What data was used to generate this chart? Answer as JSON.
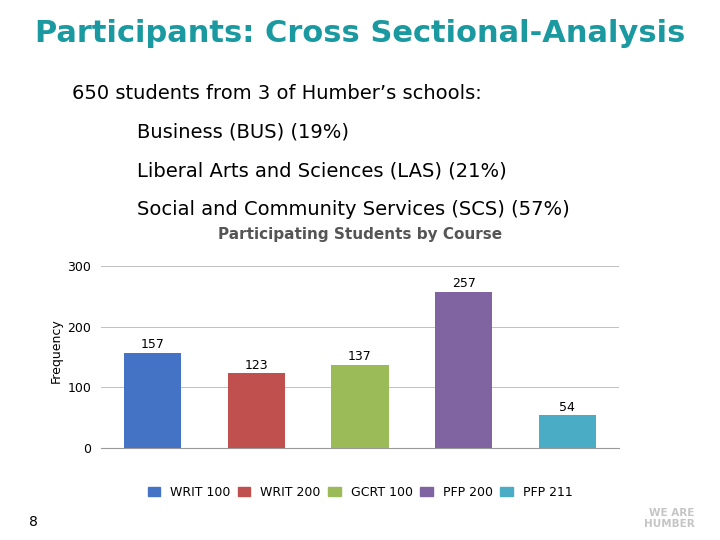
{
  "title": "Participants: Cross Sectional-Analysis",
  "title_color": "#1a9aa0",
  "title_fontsize": 22,
  "body_line1": "650 students from 3 of Humber’s schools:",
  "body_line2": "    Business (BUS) (19%)",
  "body_line3": "    Liberal Arts and Sciences (LAS) (21%)",
  "body_line4": "    Social and Community Services (SCS) (57%)",
  "body_fontsize": 14,
  "chart_title": "Participating Students by Course",
  "chart_title_fontsize": 11,
  "categories": [
    "WRIT 100",
    "WRIT 200",
    "GCRT 100",
    "PFP 200",
    "PFP 211"
  ],
  "values": [
    157,
    123,
    137,
    257,
    54
  ],
  "bar_colors": [
    "#4472c4",
    "#c0504d",
    "#9bbb59",
    "#8064a2",
    "#4bacc6"
  ],
  "ylabel": "Frequency",
  "ylim": [
    0,
    320
  ],
  "yticks": [
    0,
    100,
    200,
    300
  ],
  "background_color": "#ffffff",
  "page_number": "8",
  "legend_fontsize": 9,
  "bar_label_fontsize": 9,
  "ylabel_fontsize": 9,
  "ytick_fontsize": 9
}
